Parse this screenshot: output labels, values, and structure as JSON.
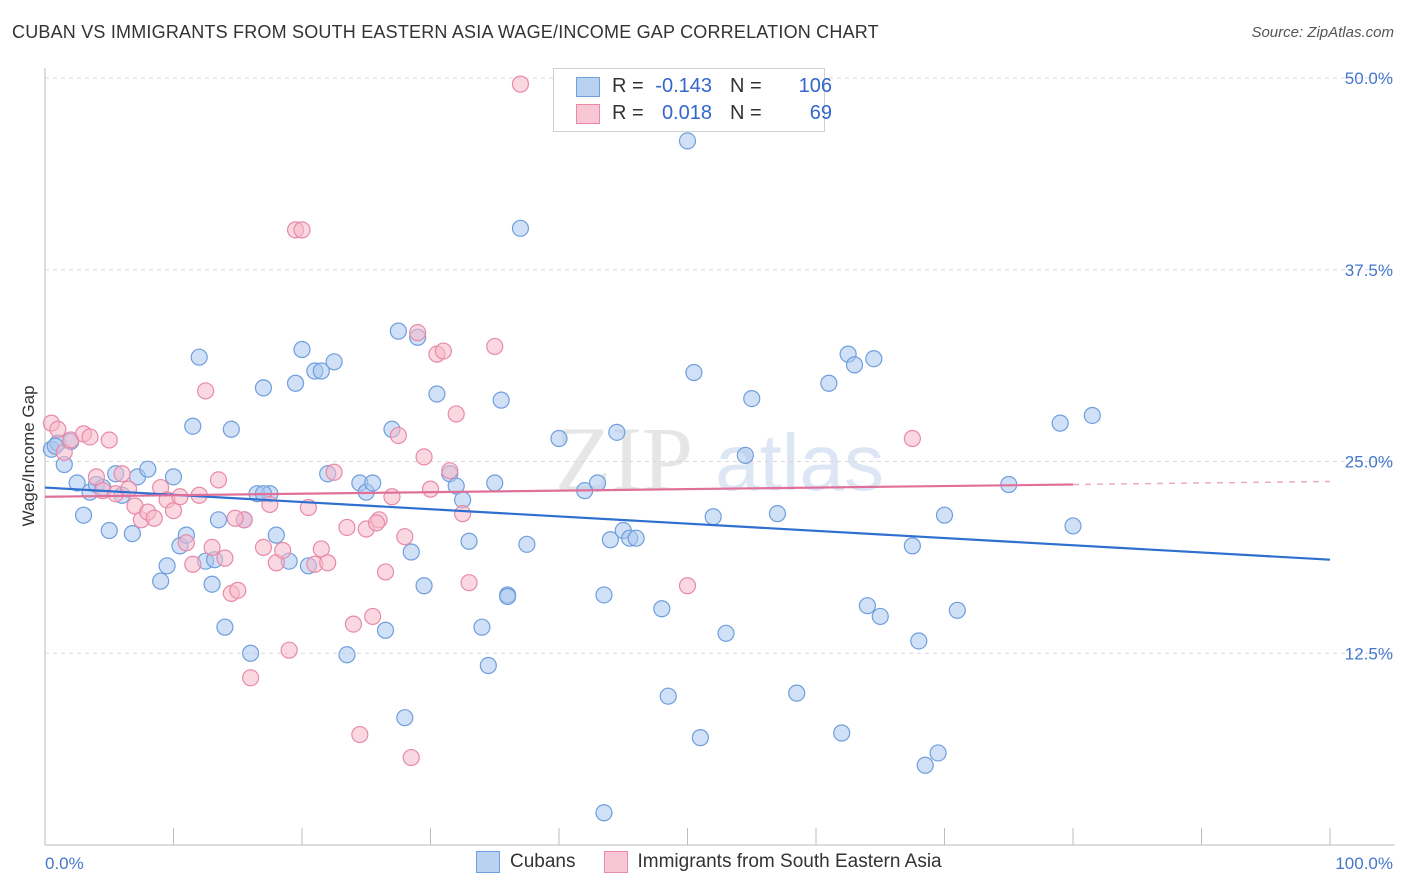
{
  "header": {
    "title": "CUBAN VS IMMIGRANTS FROM SOUTH EASTERN ASIA WAGE/INCOME GAP CORRELATION CHART",
    "source": "Source: ZipAtlas.com"
  },
  "watermark": {
    "part1": "ZIP",
    "part2": "atlas"
  },
  "legend": {
    "rows": [
      {
        "r_label": "R =",
        "r_value": "-0.143",
        "n_label": "N =",
        "n_value": "106"
      },
      {
        "r_label": "R =",
        "r_value": "0.018",
        "n_label": "N =",
        "n_value": "69"
      }
    ]
  },
  "bottom_legend": {
    "items": [
      "Cubans",
      "Immigrants from South Eastern Asia"
    ]
  },
  "colors": {
    "blue_fill": "#a9c6ee",
    "blue_stroke": "#6f9fdc",
    "blue_line": "#2e6fcf",
    "pink_fill": "#f5b8cb",
    "pink_stroke": "#e88aa8",
    "pink_line": "#e0709a"
  },
  "chart_data": {
    "type": "scatter",
    "title": "CUBAN VS IMMIGRANTS FROM SOUTH EASTERN ASIA WAGE/INCOME GAP CORRELATION CHART",
    "xlabel": "",
    "ylabel": "Wage/Income Gap",
    "xlim": [
      0,
      100
    ],
    "ylim": [
      0,
      50
    ],
    "x_tick_labels": [
      "0.0%",
      "100.0%"
    ],
    "y_ticks": [
      12.5,
      25.0,
      37.5,
      50.0
    ],
    "y_tick_labels": [
      "12.5%",
      "25.0%",
      "37.5%",
      "50.0%"
    ],
    "series": [
      {
        "name": "Cubans",
        "r": -0.143,
        "n": 106,
        "trend": {
          "x": [
            0,
            100
          ],
          "y": [
            23.3,
            18.6
          ]
        },
        "points": [
          [
            0.5,
            25.8
          ],
          [
            1,
            26.2
          ],
          [
            1.5,
            24.8
          ],
          [
            2.5,
            23.6
          ],
          [
            3,
            21.5
          ],
          [
            3.5,
            23
          ],
          [
            4,
            23.5
          ],
          [
            5,
            20.5
          ],
          [
            5.5,
            24.2
          ],
          [
            6,
            22.8
          ],
          [
            6.8,
            20.3
          ],
          [
            7.2,
            24
          ],
          [
            8,
            24.5
          ],
          [
            9,
            17.2
          ],
          [
            9.5,
            18.2
          ],
          [
            10,
            24
          ],
          [
            10.5,
            19.5
          ],
          [
            11,
            20.2
          ],
          [
            11.5,
            27.3
          ],
          [
            12,
            31.8
          ],
          [
            12.5,
            18.5
          ],
          [
            13,
            17
          ],
          [
            13.5,
            21.2
          ],
          [
            14,
            14.2
          ],
          [
            14.5,
            27.1
          ],
          [
            15.5,
            21.2
          ],
          [
            16,
            12.5
          ],
          [
            16.5,
            22.9
          ],
          [
            17,
            29.8
          ],
          [
            17.5,
            22.9
          ],
          [
            18,
            20.2
          ],
          [
            19,
            18.5
          ],
          [
            19.5,
            30.1
          ],
          [
            20,
            32.3
          ],
          [
            20.5,
            18.2
          ],
          [
            21,
            30.9
          ],
          [
            21.5,
            30.9
          ],
          [
            22,
            24.2
          ],
          [
            22.5,
            31.5
          ],
          [
            23.5,
            12.4
          ],
          [
            24.5,
            23.6
          ],
          [
            25,
            23
          ],
          [
            25.5,
            23.6
          ],
          [
            26.5,
            14
          ],
          [
            27,
            27.1
          ],
          [
            27.5,
            33.5
          ],
          [
            28,
            8.3
          ],
          [
            28.5,
            19.1
          ],
          [
            29,
            33.1
          ],
          [
            29.5,
            16.9
          ],
          [
            30.5,
            29.4
          ],
          [
            31.5,
            24.2
          ],
          [
            32,
            23.4
          ],
          [
            32.5,
            22.5
          ],
          [
            33,
            19.8
          ],
          [
            34,
            14.2
          ],
          [
            34.5,
            11.7
          ],
          [
            35,
            23.6
          ],
          [
            35.5,
            29
          ],
          [
            36,
            16.3
          ],
          [
            37,
            40.2
          ],
          [
            37.5,
            19.6
          ],
          [
            40,
            26.5
          ],
          [
            42,
            23.1
          ],
          [
            43,
            23.6
          ],
          [
            43.5,
            16.3
          ],
          [
            44,
            19.9
          ],
          [
            44.5,
            26.9
          ],
          [
            45,
            20.5
          ],
          [
            45.5,
            20
          ],
          [
            46,
            20
          ],
          [
            48,
            15.4
          ],
          [
            48.5,
            9.7
          ],
          [
            50,
            45.9
          ],
          [
            50.5,
            30.8
          ],
          [
            51,
            7
          ],
          [
            52,
            21.4
          ],
          [
            53,
            13.8
          ],
          [
            54.5,
            25.4
          ],
          [
            55,
            29.1
          ],
          [
            57,
            21.6
          ],
          [
            58.5,
            9.9
          ],
          [
            61,
            30.1
          ],
          [
            62,
            7.3
          ],
          [
            62.5,
            32
          ],
          [
            63,
            31.3
          ],
          [
            64,
            15.6
          ],
          [
            64.5,
            31.7
          ],
          [
            65,
            14.9
          ],
          [
            67.5,
            19.5
          ],
          [
            68,
            13.3
          ],
          [
            68.5,
            5.2
          ],
          [
            69.5,
            6
          ],
          [
            70,
            21.5
          ],
          [
            71,
            15.3
          ],
          [
            75,
            23.5
          ],
          [
            79,
            27.5
          ],
          [
            80,
            20.8
          ],
          [
            81.5,
            28
          ],
          [
            43.5,
            2.1
          ],
          [
            0.8,
            26
          ],
          [
            2,
            26.3
          ],
          [
            4.5,
            23.3
          ],
          [
            13.2,
            18.6
          ],
          [
            17,
            22.9
          ],
          [
            36,
            16.2
          ]
        ]
      },
      {
        "name": "Immigrants from South Eastern Asia",
        "r": 0.018,
        "n": 69,
        "trend": {
          "x": [
            0,
            80
          ],
          "y": [
            22.7,
            23.5
          ],
          "dashed_to": 100
        },
        "points": [
          [
            0.5,
            27.5
          ],
          [
            1,
            27.1
          ],
          [
            1.5,
            25.6
          ],
          [
            2,
            26.4
          ],
          [
            3,
            26.8
          ],
          [
            3.5,
            26.6
          ],
          [
            4,
            24
          ],
          [
            4.5,
            23.1
          ],
          [
            5,
            26.4
          ],
          [
            5.5,
            22.9
          ],
          [
            6,
            24.2
          ],
          [
            6.5,
            23.2
          ],
          [
            7,
            22.1
          ],
          [
            7.5,
            21.2
          ],
          [
            8,
            21.7
          ],
          [
            8.5,
            21.3
          ],
          [
            9,
            23.3
          ],
          [
            9.5,
            22.5
          ],
          [
            10,
            21.8
          ],
          [
            10.5,
            22.7
          ],
          [
            11,
            19.7
          ],
          [
            11.5,
            18.3
          ],
          [
            12,
            22.8
          ],
          [
            12.5,
            29.6
          ],
          [
            13,
            19.4
          ],
          [
            13.5,
            23.8
          ],
          [
            14,
            18.7
          ],
          [
            14.5,
            16.4
          ],
          [
            15,
            16.6
          ],
          [
            15.5,
            21.2
          ],
          [
            16,
            10.9
          ],
          [
            17,
            19.4
          ],
          [
            17.5,
            22.2
          ],
          [
            18,
            18.4
          ],
          [
            18.5,
            19.2
          ],
          [
            19,
            12.7
          ],
          [
            19.5,
            40.1
          ],
          [
            20,
            40.1
          ],
          [
            20.5,
            22
          ],
          [
            21,
            18.3
          ],
          [
            21.5,
            19.3
          ],
          [
            22,
            18.4
          ],
          [
            22.5,
            24.3
          ],
          [
            23.5,
            20.7
          ],
          [
            24,
            14.4
          ],
          [
            24.5,
            7.2
          ],
          [
            25,
            20.6
          ],
          [
            25.5,
            14.9
          ],
          [
            26,
            21.2
          ],
          [
            26.5,
            17.8
          ],
          [
            27,
            22.7
          ],
          [
            27.5,
            26.7
          ],
          [
            28,
            20.1
          ],
          [
            28.5,
            5.7
          ],
          [
            29,
            33.4
          ],
          [
            29.5,
            25.3
          ],
          [
            30,
            23.2
          ],
          [
            30.5,
            32
          ],
          [
            31,
            32.2
          ],
          [
            31.5,
            24.4
          ],
          [
            32,
            28.1
          ],
          [
            32.5,
            21.6
          ],
          [
            33,
            17.1
          ],
          [
            35,
            32.5
          ],
          [
            37,
            49.6
          ],
          [
            50,
            16.9
          ],
          [
            67.5,
            26.5
          ],
          [
            14.8,
            21.3
          ],
          [
            25.8,
            21
          ]
        ]
      }
    ]
  }
}
